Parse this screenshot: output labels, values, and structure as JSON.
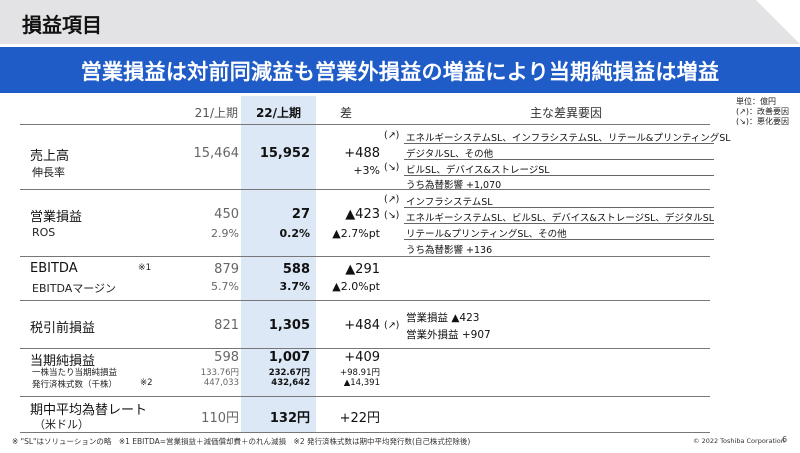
{
  "page_title": "損益項目",
  "headline": "営業損益は対前同減益も営業外損益の増益により当期純損益は増益",
  "units": [
    "単位：億円",
    "(↗)：改善要因",
    "(↘)：悪化要因"
  ],
  "headers": {
    "prev": "21/上期",
    "cur": "22/上期",
    "diff": "差",
    "factors": "主な差異要因"
  },
  "rows": {
    "sales": {
      "label": "売上高",
      "sublabel": "伸長率",
      "prev": "15,464",
      "cur": "15,952",
      "diff": "+488",
      "diff2": "+3%",
      "factors": [
        "(↗)",
        "エネルギーシステムSL、インフラシステムSL、リテール&プリンティングSL",
        "デジタルSL、その他",
        "(↘)",
        "ビルSL、デバイス&ストレージSL",
        "うち為替影響 +1,070"
      ]
    },
    "operating": {
      "label": "営業損益",
      "sublabel": "ROS",
      "prev": "450",
      "prev2": "2.9%",
      "cur": "27",
      "cur2": "0.2%",
      "diff": "▲423",
      "diff2": "▲2.7%pt",
      "factors": [
        "(↗)",
        "インフラシステムSL",
        "(↘)",
        "エネルギーシステムSL、ビルSL、デバイス&ストレージSL、デジタルSL",
        "リテール&プリンティングSL、その他",
        "うち為替影響 +136"
      ]
    },
    "ebitda": {
      "label": "EBITDA",
      "sublabel": "EBITDAマージン",
      "note": "※1",
      "prev": "879",
      "prev2": "5.7%",
      "cur": "588",
      "cur2": "3.7%",
      "diff": "▲291",
      "diff2": "▲2.0%pt"
    },
    "pretax": {
      "label": "税引前損益",
      "prev": "821",
      "cur": "1,305",
      "diff": "+484",
      "factors": [
        "(↗)",
        "営業損益 ▲423",
        "営業外損益 +907"
      ]
    },
    "net": {
      "label": "当期純損益",
      "sub1": "一株当たり当期純損益",
      "sub2": "発行済株式数（千株）",
      "note": "※2",
      "prev": "598",
      "prev2": "133.76円",
      "prev3": "447,033",
      "cur": "1,007",
      "cur2": "232.67円",
      "cur3": "432,642",
      "diff": "+409",
      "diff2": "+98.91円",
      "diff3": "▲14,391"
    },
    "fx": {
      "label": "期中平均為替レート",
      "sublabel": "（米ドル）",
      "prev": "110円",
      "cur": "132円",
      "diff": "+22円"
    }
  },
  "footnote": "※ \"SL\"はソリューションの略　※1 EBITDA=営業損益＋減価償却費＋のれん減損　※2 発行済株式数は期中平均発行数(自己株式控除後)",
  "copyright": "© 2022 Toshiba Corporation",
  "page_number": "6"
}
